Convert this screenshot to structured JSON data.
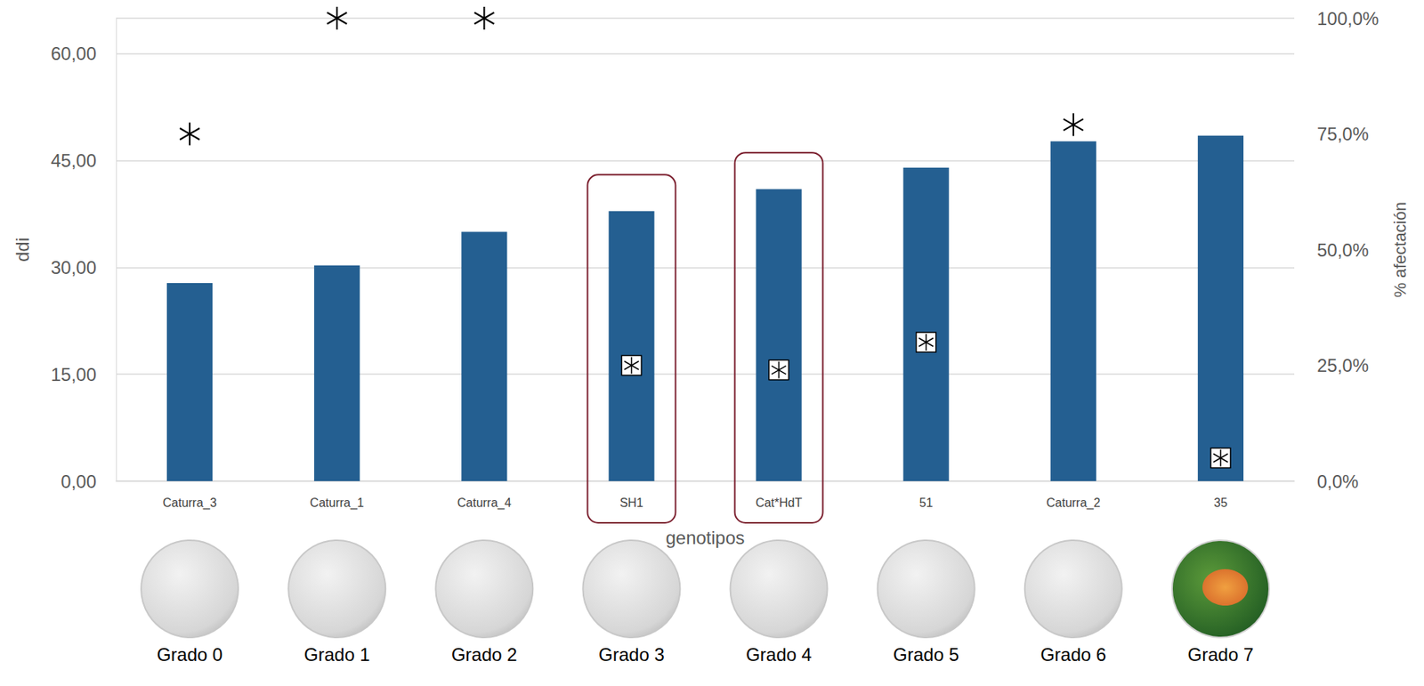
{
  "chart_data": {
    "type": "bar",
    "categories": [
      "Caturra_3",
      "Caturra_1",
      "Caturra_4",
      "SH1",
      "Cat*HdT",
      "51",
      "Caturra_2",
      "35"
    ],
    "series": [
      {
        "type": "bar",
        "color": "#245f91",
        "values": [
          27.8,
          30.3,
          35.0,
          37.9,
          41.0,
          44.0,
          47.7,
          48.5
        ]
      },
      {
        "type": "scatter",
        "axis": "y2",
        "marker": "asterisk",
        "color": "#000000",
        "values": [
          75,
          100,
          100,
          null,
          null,
          null,
          77,
          null
        ]
      },
      {
        "type": "scatter",
        "axis": "y2",
        "marker": "boxed-asterisk",
        "color": "#000000",
        "values": [
          null,
          null,
          null,
          25,
          24,
          30,
          null,
          5
        ]
      }
    ],
    "xlabel": "genotipos",
    "ylabel": "ddi",
    "y2label": "% afectación",
    "ylim": [
      0,
      65
    ],
    "yticks": [
      {
        "value": 0,
        "label": "0,00"
      },
      {
        "value": 15,
        "label": "15,00"
      },
      {
        "value": 30,
        "label": "30,00"
      },
      {
        "value": 45,
        "label": "45,00"
      },
      {
        "value": 60,
        "label": "60,00"
      }
    ],
    "y2lim": [
      0,
      100
    ],
    "y2ticks": [
      {
        "value": 0,
        "label": "0,0%"
      },
      {
        "value": 25,
        "label": "25,0%"
      },
      {
        "value": 50,
        "label": "50,0%"
      },
      {
        "value": 75,
        "label": "75,0%"
      },
      {
        "value": 100,
        "label": "100,0%"
      }
    ],
    "grid": true,
    "highlight": [
      "SH1",
      "Cat*HdT"
    ],
    "image_labels": [
      "Grado 0",
      "Grado 1",
      "Grado 2",
      "Grado 3",
      "Grado 4",
      "Grado 5",
      "Grado 6",
      "Grado 7"
    ]
  }
}
